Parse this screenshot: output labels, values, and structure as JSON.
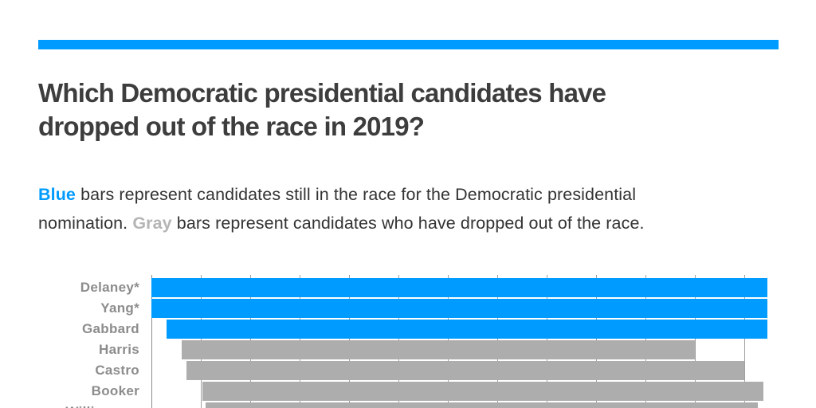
{
  "page": {
    "background": "#ffffff",
    "accent_color": "#009bff"
  },
  "header": {
    "title_line1": "Which Democratic presidential candidates have",
    "title_line2": "dropped out of the race in 2019?",
    "title_full": "Which Democratic presidential candidates have dropped out of the race in 2019?"
  },
  "description": {
    "blue_word": "Blue",
    "line1_after_blue": " bars represent candidates still in the race for the Democratic presidential",
    "line2_before_gray": "nomination. ",
    "gray_word": "Gray",
    "line2_after_gray": " bars represent candidates who have dropped out of the race.",
    "blue_color": "#009bff",
    "gray_color": "#b5b5b5",
    "text_color": "#333333"
  },
  "chart_data": {
    "type": "bar",
    "subtype": "timeline-gantt",
    "orientation": "horizontal",
    "title": "Which Democratic presidential candidates have dropped out of the race in 2019?",
    "x_unit": "months since Jan 1, 2019",
    "x_axis": {
      "min": 0,
      "max": 12.47,
      "gridline_months": [
        0,
        1,
        2,
        3,
        4,
        5,
        6,
        7,
        8,
        9,
        10,
        11,
        12
      ],
      "tick_labels_visible": false
    },
    "categories": [
      "Delaney*",
      "Yang*",
      "Gabbard",
      "Harris",
      "Castro",
      "Booker",
      "Williamson"
    ],
    "series": [
      {
        "name": "Delaney*",
        "status": "in_race",
        "start": 0.0,
        "end": 12.47
      },
      {
        "name": "Yang*",
        "status": "in_race",
        "start": 0.0,
        "end": 12.47
      },
      {
        "name": "Gabbard",
        "status": "in_race",
        "start": 0.31,
        "end": 12.47
      },
      {
        "name": "Harris",
        "status": "dropped_out",
        "start": 0.61,
        "end": 11.0
      },
      {
        "name": "Castro",
        "status": "dropped_out",
        "start": 0.71,
        "end": 12.0
      },
      {
        "name": "Booker",
        "status": "dropped_out",
        "start": 1.03,
        "end": 12.39
      },
      {
        "name": "Williamson",
        "status": "dropped_out",
        "start": 1.1,
        "end": 12.27
      }
    ],
    "colors": {
      "in_race": "#009bff",
      "dropped_out": "#adadad"
    },
    "legend": {
      "in_race_label": "Blue bars represent candidates still in the race for the Democratic presidential nomination.",
      "dropped_out_label": "Gray bars represent candidates who have dropped out of the race."
    },
    "label_color": "#8c8c8c",
    "gridline_color": "#a0a0a0",
    "axis_line_color": "#8c8c8c",
    "grid_visible": true
  }
}
